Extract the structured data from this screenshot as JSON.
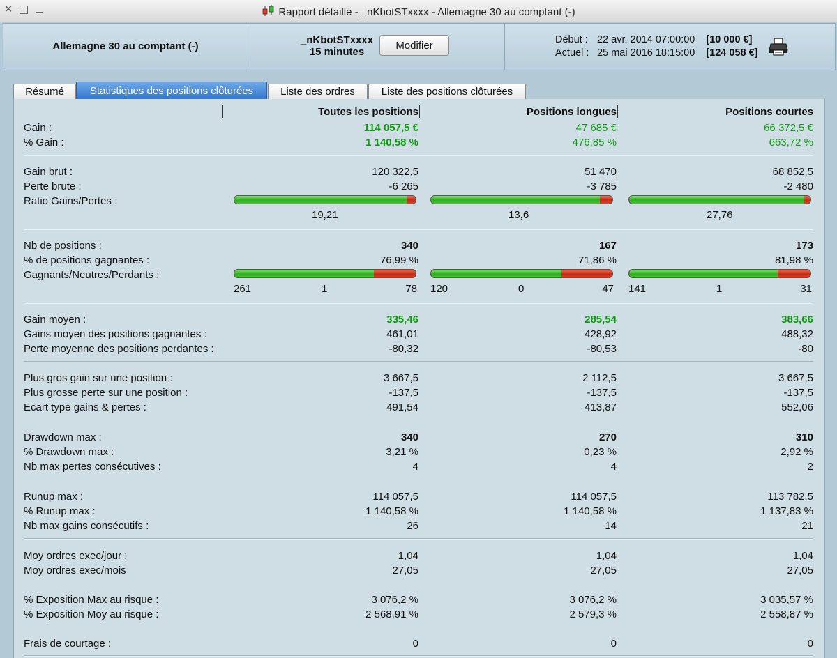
{
  "window": {
    "title": "Rapport détaillé - _nKbotSTxxxx - Allemagne 30 au comptant (-)"
  },
  "header": {
    "instrument": "Allemagne 30 au comptant (-)",
    "bot_name": "_nKbotSTxxxx",
    "timeframe": "15 minutes",
    "modify_label": "Modifier",
    "start_label": "Début :",
    "start_date": "22 avr. 2014 07:00:00",
    "start_capital": "[10 000 €]",
    "current_label": "Actuel :",
    "current_date": "25 mai 2016 18:15:00",
    "current_capital": "[124 058 €]"
  },
  "tabs": [
    {
      "label": "Résumé"
    },
    {
      "label": "Statistiques des positions clôturées",
      "active": true
    },
    {
      "label": "Liste des ordres"
    },
    {
      "label": "Liste des positions clôturées"
    }
  ],
  "columns": [
    "Toutes les positions",
    "Positions longues",
    "Positions courtes"
  ],
  "rows": {
    "gain": {
      "label": "Gain :",
      "values": [
        "114 057,5 €",
        "47 685 €",
        "66 372,5 €"
      ]
    },
    "pct_gain": {
      "label": "% Gain :",
      "values": [
        "1 140,58 %",
        "476,85 %",
        "663,72 %"
      ]
    },
    "gross_gain": {
      "label": "Gain brut :",
      "values": [
        "120 322,5",
        "51 470",
        "68 852,5"
      ]
    },
    "gross_loss": {
      "label": "Perte brute :",
      "values": [
        "-6 265",
        "-3 785",
        "-2 480"
      ]
    },
    "ratio_label": "Ratio Gains/Pertes :",
    "ratio": [
      "19,21",
      "13,6",
      "27,76"
    ],
    "nb_positions": {
      "label": "Nb de positions :",
      "values": [
        "340",
        "167",
        "173"
      ]
    },
    "pct_winning": {
      "label": "% de positions gagnantes :",
      "values": [
        "76,99 %",
        "71,86 %",
        "81,98 %"
      ]
    },
    "wnl_label": "Gagnants/Neutres/Perdants :",
    "wnl": [
      {
        "w": "261",
        "n": "1",
        "l": "78"
      },
      {
        "w": "120",
        "n": "0",
        "l": "47"
      },
      {
        "w": "141",
        "n": "1",
        "l": "31"
      }
    ],
    "avg_gain": {
      "label": "Gain moyen :",
      "values": [
        "335,46",
        "285,54",
        "383,66"
      ]
    },
    "avg_win": {
      "label": "Gains moyen des positions gagnantes :",
      "values": [
        "461,01",
        "428,92",
        "488,32"
      ]
    },
    "avg_loss": {
      "label": "Perte moyenne des positions perdantes :",
      "values": [
        "-80,32",
        "-80,53",
        "-80"
      ]
    },
    "max_gain": {
      "label": "Plus gros gain sur une position :",
      "values": [
        "3 667,5",
        "2 112,5",
        "3 667,5"
      ]
    },
    "max_loss": {
      "label": "Plus grosse perte sur une position :",
      "values": [
        "-137,5",
        "-137,5",
        "-137,5"
      ]
    },
    "std_dev": {
      "label": "Ecart type gains & pertes :",
      "values": [
        "491,54",
        "413,87",
        "552,06"
      ]
    },
    "dd_max": {
      "label": "Drawdown max :",
      "values": [
        "340",
        "270",
        "310"
      ]
    },
    "pct_dd_max": {
      "label": "% Drawdown max :",
      "values": [
        "3,21 %",
        "0,23 %",
        "2,92 %"
      ]
    },
    "max_cons_losses": {
      "label": "Nb max pertes consécutives :",
      "values": [
        "4",
        "4",
        "2"
      ]
    },
    "runup_max": {
      "label": "Runup max :",
      "values": [
        "114 057,5",
        "114 057,5",
        "113 782,5"
      ]
    },
    "pct_runup_max": {
      "label": "% Runup max :",
      "values": [
        "1 140,58 %",
        "1 140,58 %",
        "1 137,83 %"
      ]
    },
    "max_cons_gains": {
      "label": "Nb max gains consécutifs :",
      "values": [
        "26",
        "14",
        "21"
      ]
    },
    "orders_day": {
      "label": "Moy ordres exec/jour :",
      "values": [
        "1,04",
        "1,04",
        "1,04"
      ]
    },
    "orders_month": {
      "label": "Moy ordres exec/mois",
      "values": [
        "27,05",
        "27,05",
        "27,05"
      ]
    },
    "exp_max": {
      "label": "% Exposition Max au risque :",
      "values": [
        "3 076,2 %",
        "3 076,2 %",
        "3 035,57 %"
      ]
    },
    "exp_avg": {
      "label": "% Exposition Moy au risque :",
      "values": [
        "2 568,91 %",
        "2 579,3 %",
        "2 558,87 %"
      ]
    },
    "fees": {
      "label": "Frais de courtage :",
      "values": [
        "0",
        "0",
        "0"
      ]
    }
  },
  "bars": {
    "ratio_fill": [
      0.95,
      0.93,
      0.965
    ],
    "wnl_fill": [
      0.77,
      0.72,
      0.82
    ]
  },
  "colors": {
    "positive": "#0e9a0e",
    "active_tab": "#2f75cf"
  },
  "icons": [
    "close-icon",
    "maximize-icon",
    "minimize-icon",
    "candlestick-icon",
    "printer-icon"
  ]
}
